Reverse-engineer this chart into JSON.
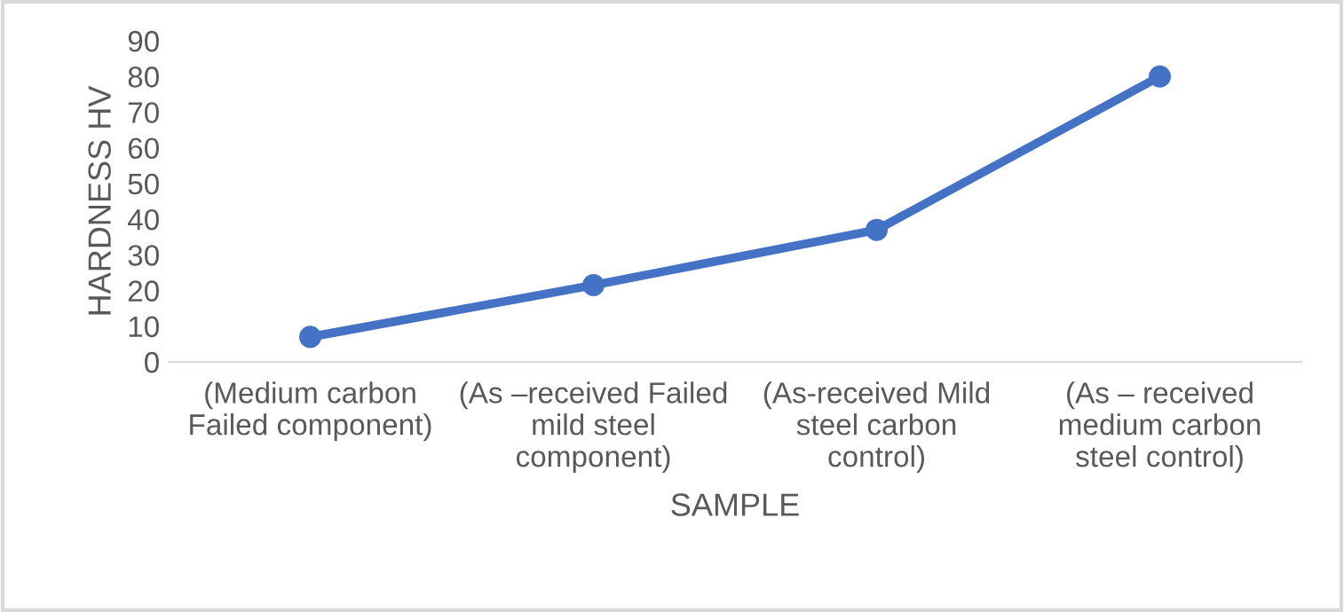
{
  "chart_data": {
    "type": "line",
    "xlabel": "SAMPLE",
    "ylabel": "HARDNESS HV",
    "categories": [
      "(Medium carbon\nFailed component)",
      "(As –received Failed\nmild steel\ncomponent)",
      "(As-received Mild\nsteel carbon\ncontrol)",
      "(As – received\nmedium carbon\nsteel control)"
    ],
    "series": [
      {
        "color": "#4472c4",
        "values": [
          7,
          21.5,
          37,
          80
        ]
      }
    ],
    "ylim": [
      0,
      90
    ],
    "yticks": [
      0,
      10,
      20,
      30,
      40,
      50,
      60,
      70,
      80,
      90
    ],
    "marker": "circle",
    "line_style": "solid",
    "grid": false,
    "legend": false
  }
}
